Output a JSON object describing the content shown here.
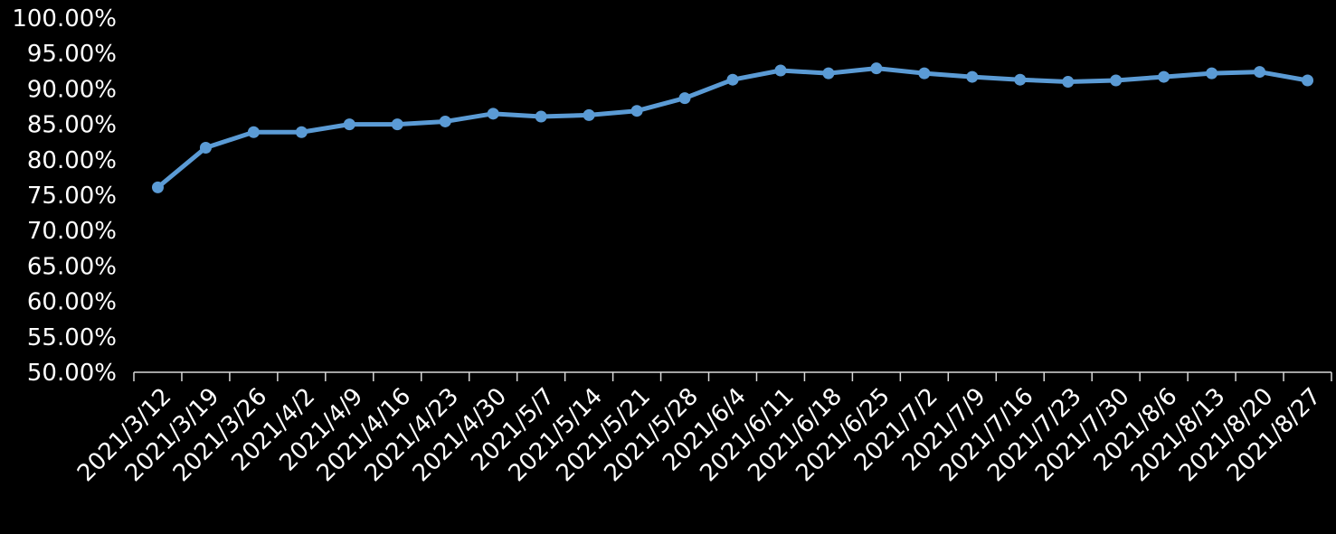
{
  "chart_data": {
    "type": "line",
    "title": "",
    "xlabel": "",
    "ylabel": "",
    "ylim": [
      0.5,
      1.0
    ],
    "y_ticks": [
      "50.00%",
      "55.00%",
      "60.00%",
      "65.00%",
      "70.00%",
      "75.00%",
      "80.00%",
      "85.00%",
      "90.00%",
      "95.00%",
      "100.00%"
    ],
    "grid": false,
    "legend": "none",
    "categories": [
      "2021/3/12",
      "2021/3/19",
      "2021/3/26",
      "2021/4/2",
      "2021/4/9",
      "2021/4/16",
      "2021/4/23",
      "2021/4/30",
      "2021/5/7",
      "2021/5/14",
      "2021/5/21",
      "2021/5/28",
      "2021/6/4",
      "2021/6/11",
      "2021/6/18",
      "2021/6/25",
      "2021/7/2",
      "2021/7/9",
      "2021/7/16",
      "2021/7/23",
      "2021/7/30",
      "2021/8/6",
      "2021/8/13",
      "2021/8/20",
      "2021/8/27"
    ],
    "series": [
      {
        "color": "#5b9bd5",
        "values": [
          0.761,
          0.817,
          0.839,
          0.839,
          0.85,
          0.85,
          0.854,
          0.865,
          0.861,
          0.863,
          0.869,
          0.887,
          0.913,
          0.926,
          0.922,
          0.929,
          0.922,
          0.917,
          0.913,
          0.91,
          0.912,
          0.917,
          0.922,
          0.924,
          0.912
        ]
      }
    ]
  },
  "colors": {
    "background": "#000000",
    "axis": "#d9d9d9",
    "text": "#ffffff",
    "line": "#5b9bd5"
  }
}
